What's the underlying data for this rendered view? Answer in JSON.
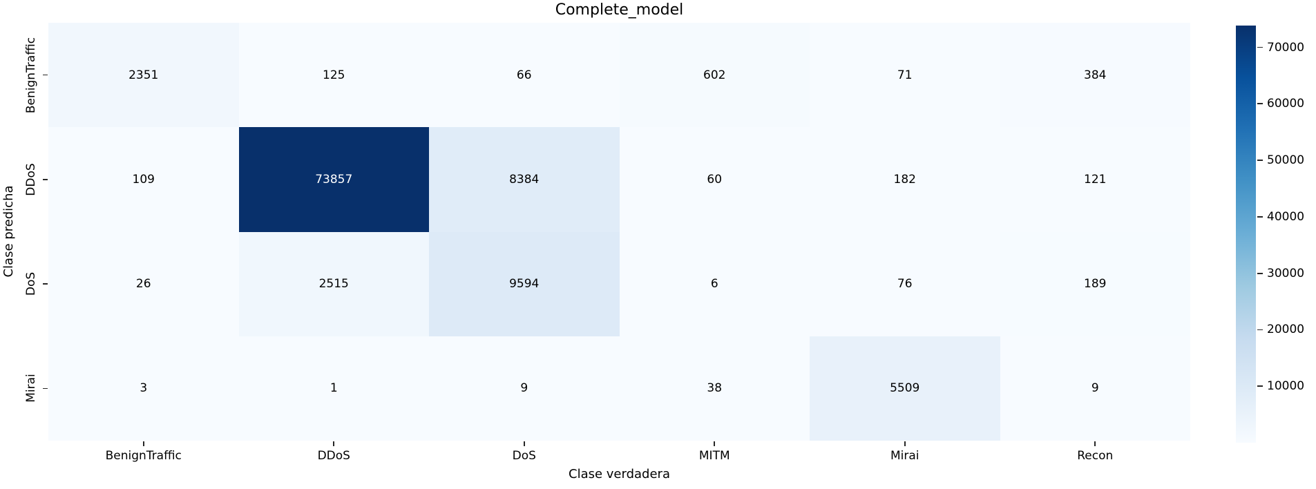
{
  "chart_data": {
    "type": "heatmap",
    "title": "Complete_model",
    "xlabel": "Clase verdadera",
    "ylabel": "Clase predicha",
    "x_categories": [
      "BenignTraffic",
      "DDoS",
      "DoS",
      "MITM",
      "Mirai",
      "Recon"
    ],
    "y_categories": [
      "BenignTraffic",
      "DDoS",
      "DoS",
      "Mirai"
    ],
    "matrix": [
      [
        2351,
        125,
        66,
        602,
        71,
        384
      ],
      [
        109,
        73857,
        8384,
        60,
        182,
        121
      ],
      [
        26,
        2515,
        9594,
        6,
        76,
        189
      ],
      [
        3,
        1,
        9,
        38,
        5509,
        9
      ]
    ],
    "vmin": 1,
    "vmax": 73857,
    "colormap": "Blues",
    "colorbar_ticks": [
      10000,
      20000,
      30000,
      40000,
      50000,
      60000,
      70000
    ],
    "annotation_color_dark_cells": "#ffffff",
    "annotation_color_light_cells": "#000000",
    "grid": false,
    "legend_position": "right-colorbar"
  }
}
